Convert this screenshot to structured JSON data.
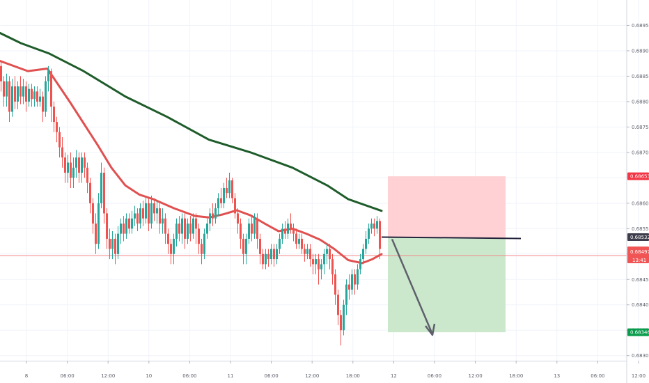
{
  "chart_data": {
    "type": "candlestick",
    "instrument_price_axis": {
      "ticks": [
        "0.68950",
        "0.68900",
        "0.68850",
        "0.68800",
        "0.68750",
        "0.68700",
        "0.68650",
        "0.68600",
        "0.68550",
        "0.68500",
        "0.68450",
        "0.68400",
        "0.68350",
        "0.68300"
      ],
      "ylim": [
        0.6829,
        0.69
      ]
    },
    "time_axis": {
      "labels": [
        "8",
        "06:00",
        "12:00",
        "10",
        "06:00",
        "11",
        "06:00",
        "12:00",
        "18:00",
        "12",
        "06:00",
        "12:00",
        "18:00",
        "13",
        "06:00",
        "12:00"
      ]
    },
    "price_tags": {
      "stop_loss": {
        "value": "0.68653",
        "color": "#f23645"
      },
      "entry": {
        "value": "0.68532",
        "color": "#3c3c4c"
      },
      "current": {
        "value": "0.68497",
        "color": "#f05454"
      },
      "countdown": {
        "value": "13:41",
        "color": "#f05454"
      },
      "take_profit": {
        "value": "0.68346",
        "color": "#089c4c"
      }
    },
    "current_price": 0.68497,
    "entry_price": 0.68532,
    "stop_loss": 0.68653,
    "take_profit": 0.68346,
    "moving_averages": [
      {
        "color": "#1e5c2a",
        "points": [
          [
            0,
            0.68935
          ],
          [
            30,
            0.68915
          ],
          [
            70,
            0.68895
          ],
          [
            120,
            0.6886
          ],
          [
            180,
            0.6881
          ],
          [
            240,
            0.6877
          ],
          [
            300,
            0.68725
          ],
          [
            360,
            0.687
          ],
          [
            420,
            0.6867
          ],
          [
            470,
            0.68635
          ],
          [
            500,
            0.68608
          ],
          [
            548,
            0.68585
          ]
        ]
      },
      {
        "color": "#e05050",
        "points": [
          [
            0,
            0.6888
          ],
          [
            40,
            0.6886
          ],
          [
            68,
            0.68865
          ],
          [
            100,
            0.688
          ],
          [
            140,
            0.68715
          ],
          [
            160,
            0.6867
          ],
          [
            180,
            0.68635
          ],
          [
            200,
            0.68617
          ],
          [
            220,
            0.68608
          ],
          [
            250,
            0.6859
          ],
          [
            280,
            0.68575
          ],
          [
            300,
            0.68572
          ],
          [
            320,
            0.68578
          ],
          [
            340,
            0.68586
          ],
          [
            360,
            0.68576
          ],
          [
            380,
            0.6856
          ],
          [
            400,
            0.68545
          ],
          [
            420,
            0.6855
          ],
          [
            440,
            0.6854
          ],
          [
            460,
            0.68528
          ],
          [
            480,
            0.6851
          ],
          [
            500,
            0.68488
          ],
          [
            520,
            0.68482
          ],
          [
            535,
            0.6849
          ],
          [
            548,
            0.685
          ]
        ]
      }
    ],
    "candles": [
      [
        0,
        0.6887,
        0.6884,
        0.6888,
        0.6882
      ],
      [
        4,
        0.6884,
        0.6881,
        0.6885,
        0.6879
      ],
      [
        8,
        0.6881,
        0.6884,
        0.68855,
        0.6879
      ],
      [
        12,
        0.6884,
        0.6878,
        0.6885,
        0.6876
      ],
      [
        16,
        0.6878,
        0.6883,
        0.68845,
        0.6877
      ],
      [
        20,
        0.6883,
        0.688,
        0.6885,
        0.68785
      ],
      [
        24,
        0.688,
        0.6883,
        0.6884,
        0.68785
      ],
      [
        28,
        0.6883,
        0.6881,
        0.6885,
        0.68795
      ],
      [
        32,
        0.6881,
        0.6883,
        0.68845,
        0.68795
      ],
      [
        36,
        0.6883,
        0.688,
        0.6884,
        0.6878
      ],
      [
        40,
        0.688,
        0.68825,
        0.68835,
        0.6879
      ],
      [
        44,
        0.68825,
        0.68805,
        0.68835,
        0.6879
      ],
      [
        48,
        0.68805,
        0.6882,
        0.6883,
        0.6879
      ],
      [
        52,
        0.6882,
        0.688,
        0.6883,
        0.6879
      ],
      [
        56,
        0.688,
        0.6881,
        0.68825,
        0.6879
      ],
      [
        60,
        0.6881,
        0.6878,
        0.6882,
        0.6876
      ],
      [
        64,
        0.6878,
        0.6884,
        0.6885,
        0.6877
      ],
      [
        68,
        0.6884,
        0.6886,
        0.6887,
        0.6882
      ],
      [
        72,
        0.6886,
        0.6879,
        0.68865,
        0.6876
      ],
      [
        76,
        0.6879,
        0.6876,
        0.688,
        0.6874
      ],
      [
        80,
        0.6876,
        0.6874,
        0.6877,
        0.6872
      ],
      [
        84,
        0.6874,
        0.6871,
        0.6875,
        0.6869
      ],
      [
        88,
        0.6871,
        0.6869,
        0.6873,
        0.6867
      ],
      [
        92,
        0.6869,
        0.6866,
        0.687,
        0.6864
      ],
      [
        96,
        0.6866,
        0.6868,
        0.68695,
        0.6864
      ],
      [
        100,
        0.6868,
        0.6865,
        0.687,
        0.6863
      ],
      [
        104,
        0.6865,
        0.6867,
        0.6869,
        0.6863
      ],
      [
        108,
        0.6867,
        0.6869,
        0.68705,
        0.6865
      ],
      [
        112,
        0.6869,
        0.6866,
        0.687,
        0.6864
      ],
      [
        116,
        0.6866,
        0.6869,
        0.687,
        0.6864
      ],
      [
        120,
        0.6869,
        0.6867,
        0.687,
        0.6865
      ],
      [
        124,
        0.6867,
        0.6864,
        0.6868,
        0.6862
      ],
      [
        128,
        0.6864,
        0.686,
        0.6865,
        0.6858
      ],
      [
        132,
        0.686,
        0.6856,
        0.6861,
        0.6854
      ],
      [
        136,
        0.6856,
        0.6852,
        0.6858,
        0.685
      ],
      [
        140,
        0.6852,
        0.686,
        0.6862,
        0.6851
      ],
      [
        144,
        0.686,
        0.6866,
        0.6868,
        0.6859
      ],
      [
        148,
        0.6866,
        0.6858,
        0.6867,
        0.6856
      ],
      [
        152,
        0.6858,
        0.6853,
        0.6859,
        0.6851
      ],
      [
        156,
        0.6853,
        0.6851,
        0.6855,
        0.6849
      ],
      [
        160,
        0.6851,
        0.6853,
        0.68545,
        0.6849
      ],
      [
        164,
        0.6853,
        0.685,
        0.6854,
        0.6848
      ],
      [
        168,
        0.685,
        0.6854,
        0.68555,
        0.6849
      ],
      [
        172,
        0.6854,
        0.6856,
        0.6857,
        0.6852
      ],
      [
        176,
        0.6856,
        0.6854,
        0.68575,
        0.68525
      ],
      [
        180,
        0.6854,
        0.6857,
        0.6858,
        0.6853
      ],
      [
        184,
        0.6857,
        0.6855,
        0.6858,
        0.6854
      ],
      [
        188,
        0.6855,
        0.6857,
        0.68585,
        0.6854
      ],
      [
        192,
        0.6857,
        0.6858,
        0.68595,
        0.68555
      ],
      [
        196,
        0.6858,
        0.6856,
        0.6859,
        0.68545
      ],
      [
        200,
        0.6856,
        0.6859,
        0.686,
        0.6855
      ],
      [
        204,
        0.6859,
        0.6857,
        0.68605,
        0.68555
      ],
      [
        208,
        0.6857,
        0.686,
        0.6861,
        0.6856
      ],
      [
        212,
        0.686,
        0.6856,
        0.6861,
        0.68545
      ],
      [
        216,
        0.6856,
        0.686,
        0.68615,
        0.6855
      ],
      [
        220,
        0.686,
        0.6858,
        0.6861,
        0.68565
      ],
      [
        224,
        0.6858,
        0.6859,
        0.68605,
        0.6856
      ],
      [
        228,
        0.6859,
        0.6856,
        0.686,
        0.6854
      ],
      [
        232,
        0.6856,
        0.6857,
        0.6859,
        0.6854
      ],
      [
        236,
        0.6857,
        0.6854,
        0.6858,
        0.6852
      ],
      [
        240,
        0.6854,
        0.6852,
        0.6855,
        0.685
      ],
      [
        244,
        0.6852,
        0.685,
        0.6853,
        0.6848
      ],
      [
        248,
        0.685,
        0.6853,
        0.6854,
        0.6848
      ],
      [
        252,
        0.6853,
        0.6856,
        0.6857,
        0.68515
      ],
      [
        256,
        0.6856,
        0.6854,
        0.68575,
        0.68525
      ],
      [
        260,
        0.6854,
        0.6857,
        0.6858,
        0.6852
      ],
      [
        264,
        0.6857,
        0.6853,
        0.6858,
        0.6851
      ],
      [
        268,
        0.6853,
        0.6856,
        0.6857,
        0.6852
      ],
      [
        272,
        0.6856,
        0.6854,
        0.68575,
        0.68525
      ],
      [
        276,
        0.6854,
        0.6857,
        0.6858,
        0.6853
      ],
      [
        280,
        0.6857,
        0.6855,
        0.6858,
        0.6852
      ],
      [
        284,
        0.6855,
        0.6852,
        0.6856,
        0.685
      ],
      [
        288,
        0.6852,
        0.685,
        0.6853,
        0.6848
      ],
      [
        292,
        0.685,
        0.6854,
        0.6855,
        0.6849
      ],
      [
        296,
        0.6854,
        0.6856,
        0.6857,
        0.6853
      ],
      [
        300,
        0.6856,
        0.6858,
        0.6859,
        0.68545
      ],
      [
        304,
        0.6858,
        0.6857,
        0.686,
        0.68555
      ],
      [
        308,
        0.6857,
        0.6859,
        0.686,
        0.6856
      ],
      [
        312,
        0.6859,
        0.6861,
        0.6862,
        0.68575
      ],
      [
        316,
        0.6861,
        0.686,
        0.6863,
        0.6859
      ],
      [
        320,
        0.686,
        0.6863,
        0.6864,
        0.6859
      ],
      [
        324,
        0.6863,
        0.6862,
        0.6865,
        0.6861
      ],
      [
        328,
        0.6862,
        0.68645,
        0.6866,
        0.6861
      ],
      [
        332,
        0.68645,
        0.6861,
        0.6865,
        0.686
      ],
      [
        336,
        0.6861,
        0.6858,
        0.6862,
        0.6857
      ],
      [
        340,
        0.6858,
        0.6856,
        0.6859,
        0.6854
      ],
      [
        344,
        0.6856,
        0.6853,
        0.6857,
        0.6851
      ],
      [
        348,
        0.6853,
        0.685,
        0.6854,
        0.6848
      ],
      [
        352,
        0.685,
        0.6853,
        0.6854,
        0.6848
      ],
      [
        356,
        0.6853,
        0.6856,
        0.6857,
        0.6852
      ],
      [
        360,
        0.6856,
        0.6854,
        0.68575,
        0.68525
      ],
      [
        364,
        0.6854,
        0.6857,
        0.6858,
        0.6853
      ],
      [
        368,
        0.6857,
        0.6853,
        0.6858,
        0.6851
      ],
      [
        372,
        0.6853,
        0.685,
        0.6854,
        0.6848
      ],
      [
        376,
        0.685,
        0.6848,
        0.6851,
        0.6847
      ],
      [
        380,
        0.6848,
        0.685,
        0.6851,
        0.6847
      ],
      [
        384,
        0.685,
        0.6849,
        0.6851,
        0.68475
      ],
      [
        388,
        0.6849,
        0.6851,
        0.6852,
        0.6848
      ],
      [
        392,
        0.6851,
        0.6849,
        0.6852,
        0.68475
      ],
      [
        396,
        0.6849,
        0.6851,
        0.6852,
        0.6848
      ],
      [
        400,
        0.6851,
        0.6853,
        0.6854,
        0.685
      ],
      [
        404,
        0.6853,
        0.6855,
        0.6856,
        0.6852
      ],
      [
        408,
        0.6855,
        0.6854,
        0.68565,
        0.6853
      ],
      [
        412,
        0.6854,
        0.6856,
        0.6857,
        0.6853
      ],
      [
        416,
        0.6856,
        0.6855,
        0.6858,
        0.6854
      ],
      [
        420,
        0.6855,
        0.6854,
        0.6856,
        0.68525
      ],
      [
        424,
        0.6854,
        0.6852,
        0.6855,
        0.6851
      ],
      [
        428,
        0.6852,
        0.6853,
        0.6854,
        0.6851
      ],
      [
        432,
        0.6853,
        0.6851,
        0.6854,
        0.685
      ],
      [
        436,
        0.6851,
        0.685,
        0.6852,
        0.68485
      ],
      [
        440,
        0.685,
        0.6851,
        0.6852,
        0.6849
      ],
      [
        444,
        0.6851,
        0.6849,
        0.6852,
        0.68475
      ],
      [
        448,
        0.6849,
        0.6848,
        0.685,
        0.6846
      ],
      [
        452,
        0.6848,
        0.6849,
        0.685,
        0.6846
      ],
      [
        456,
        0.6849,
        0.6847,
        0.685,
        0.6844
      ],
      [
        460,
        0.6847,
        0.6848,
        0.6849,
        0.6845
      ],
      [
        464,
        0.6848,
        0.685,
        0.6851,
        0.6846
      ],
      [
        468,
        0.685,
        0.6851,
        0.6852,
        0.6848
      ],
      [
        472,
        0.6851,
        0.6849,
        0.6852,
        0.6847
      ],
      [
        476,
        0.6849,
        0.6846,
        0.685,
        0.6844
      ],
      [
        480,
        0.6846,
        0.6842,
        0.6847,
        0.684
      ],
      [
        484,
        0.6842,
        0.6838,
        0.6843,
        0.6836
      ],
      [
        488,
        0.6838,
        0.6835,
        0.6839,
        0.6832
      ],
      [
        492,
        0.6835,
        0.684,
        0.6841,
        0.6834
      ],
      [
        496,
        0.684,
        0.6844,
        0.6845,
        0.6838
      ],
      [
        500,
        0.6844,
        0.6843,
        0.6846,
        0.6841
      ],
      [
        504,
        0.6843,
        0.6846,
        0.6847,
        0.6842
      ],
      [
        508,
        0.6846,
        0.6844,
        0.6847,
        0.6842
      ],
      [
        512,
        0.6844,
        0.6847,
        0.6848,
        0.6843
      ],
      [
        516,
        0.6847,
        0.6849,
        0.685,
        0.6846
      ],
      [
        520,
        0.6849,
        0.6851,
        0.6852,
        0.6848
      ],
      [
        524,
        0.6851,
        0.6853,
        0.68545,
        0.685
      ],
      [
        528,
        0.6853,
        0.6855,
        0.6856,
        0.6852
      ],
      [
        532,
        0.6855,
        0.6856,
        0.6857,
        0.6854
      ],
      [
        536,
        0.6856,
        0.6855,
        0.6857,
        0.68535
      ],
      [
        540,
        0.6855,
        0.68565,
        0.68575,
        0.6854
      ],
      [
        544,
        0.68565,
        0.6851,
        0.6857,
        0.6849
      ]
    ],
    "colors": {
      "bull": "#26a69a",
      "bear": "#ef5350",
      "grid": "#f0f3fa",
      "axis_text": "#5d606b",
      "risk_zone": "#ffcdd2",
      "reward_zone": "#c8e6c9",
      "entry_line": "#22223a",
      "arrow": "#5d606b"
    }
  }
}
